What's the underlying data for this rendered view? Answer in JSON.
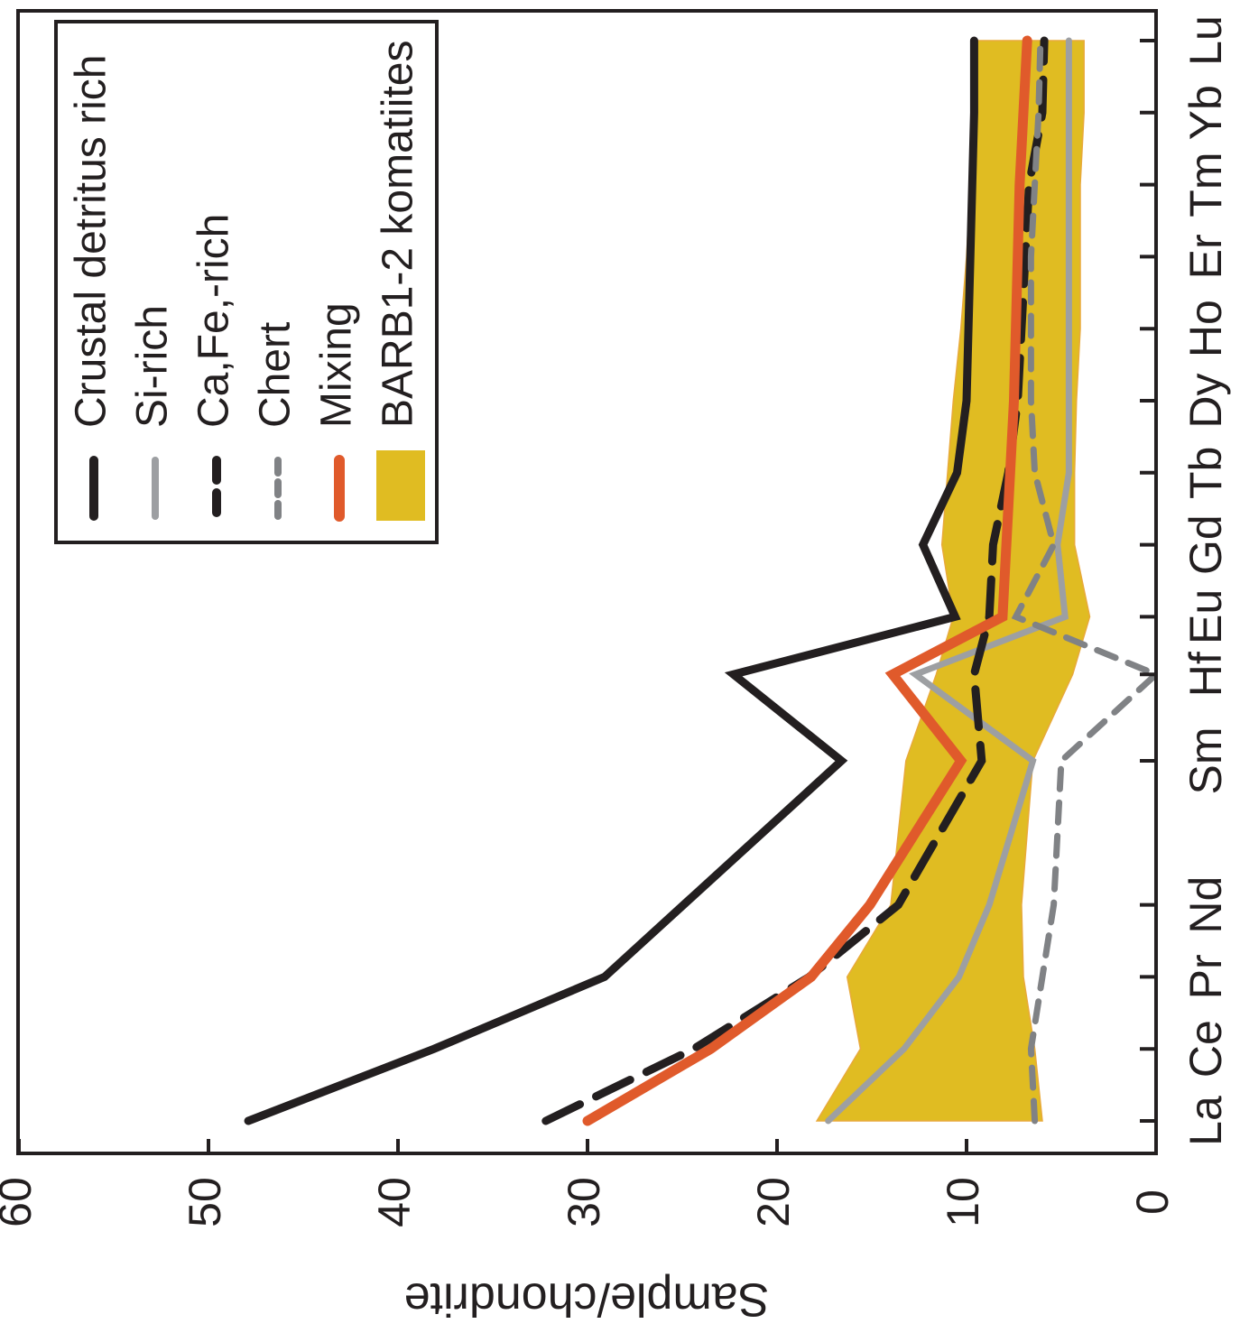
{
  "chart_data": {
    "type": "line",
    "orientation": "rotated-90-clockwise",
    "title": "",
    "xlabel": "",
    "ylabel": "Sample/chondrite",
    "ylim": [
      0,
      60
    ],
    "yticks": [
      0,
      10,
      20,
      30,
      40,
      50,
      60
    ],
    "grid": false,
    "legend_position": "top-right",
    "categories": [
      "La",
      "Ce",
      "Pr",
      "Nd",
      "Sm",
      "Hf",
      "Eu",
      "Gd",
      "Tb",
      "Dy",
      "Ho",
      "Er",
      "Tm",
      "Yb",
      "Lu"
    ],
    "category_positions": [
      0,
      1,
      2,
      3,
      5,
      6.2,
      7,
      8,
      9,
      10,
      11,
      12,
      13,
      14,
      15
    ],
    "band": {
      "name": "BARB1-2 komatiites",
      "color": "#e0bc22",
      "upper_x": [
        0,
        1,
        2,
        3,
        5,
        6.2,
        7,
        8,
        9,
        10,
        11,
        12,
        13,
        14,
        15
      ],
      "upper": [
        17.9,
        15.6,
        16.3,
        14.0,
        13.2,
        11.6,
        10.7,
        11.3,
        11.0,
        10.7,
        10.3,
        10.0,
        9.8,
        9.7,
        9.7
      ],
      "lower_x": [
        0,
        1,
        2,
        3,
        5,
        6.2,
        7,
        8,
        9,
        10,
        11,
        12,
        13,
        14,
        15
      ],
      "lower": [
        6.0,
        6.4,
        7.0,
        7.1,
        6.5,
        4.4,
        3.5,
        4.3,
        4.3,
        4.2,
        4.0,
        4.0,
        4.0,
        3.8,
        3.8
      ]
    },
    "series": [
      {
        "name": "Crustal detritus rich",
        "color": "#231f20",
        "width": 9,
        "dash": "none",
        "x": [
          0,
          1,
          2,
          5,
          6.2,
          7,
          8,
          9,
          10,
          11,
          12,
          13,
          14,
          15
        ],
        "values": [
          47.9,
          38.1,
          29.1,
          16.6,
          22.3,
          10.6,
          12.3,
          10.5,
          10.0,
          9.9,
          9.8,
          9.7,
          9.6,
          9.6
        ]
      },
      {
        "name": "Si-rich",
        "color": "#9d9fa2",
        "width": 7,
        "dash": "none",
        "x": [
          0,
          1,
          2,
          3,
          5,
          6.2,
          7,
          8,
          9,
          10,
          11,
          12,
          13,
          14,
          15
        ],
        "values": [
          17.3,
          13.3,
          10.4,
          8.8,
          6.5,
          12.7,
          4.8,
          5.2,
          4.6,
          4.6,
          4.6,
          4.6,
          4.6,
          4.6,
          4.6
        ]
      },
      {
        "name": "Ca,Fe,-rich",
        "color": "#231f20",
        "width": 9,
        "dash": "42 20",
        "x": [
          0,
          1,
          2,
          3,
          5,
          6.2,
          7,
          8,
          9,
          10,
          11,
          12,
          13,
          14,
          15
        ],
        "values": [
          32.2,
          24.4,
          18.3,
          13.6,
          9.2,
          9.6,
          8.8,
          8.6,
          7.8,
          7.3,
          7.1,
          6.9,
          6.7,
          6.0,
          5.9
        ]
      },
      {
        "name": "Chert",
        "color": "#808285",
        "width": 7,
        "dash": "22 15",
        "x": [
          0,
          1,
          2,
          3,
          5,
          6.2,
          7,
          8,
          9,
          10,
          11,
          12,
          13,
          14,
          15
        ],
        "values": [
          6.4,
          6.6,
          6.0,
          5.4,
          5.0,
          0.0,
          7.4,
          5.4,
          6.4,
          6.6,
          6.6,
          6.6,
          6.4,
          6.2,
          6.1
        ]
      },
      {
        "name": "Mixing",
        "color": "#e05a2b",
        "width": 11,
        "dash": "none",
        "x": [
          0,
          1,
          2,
          3,
          5,
          6.2,
          7,
          8,
          9,
          10,
          11,
          12,
          13,
          14,
          15
        ],
        "values": [
          30.0,
          23.5,
          18.2,
          15.1,
          10.3,
          13.9,
          8.1,
          7.9,
          7.7,
          7.5,
          7.4,
          7.3,
          7.2,
          7.0,
          6.8
        ]
      }
    ]
  }
}
